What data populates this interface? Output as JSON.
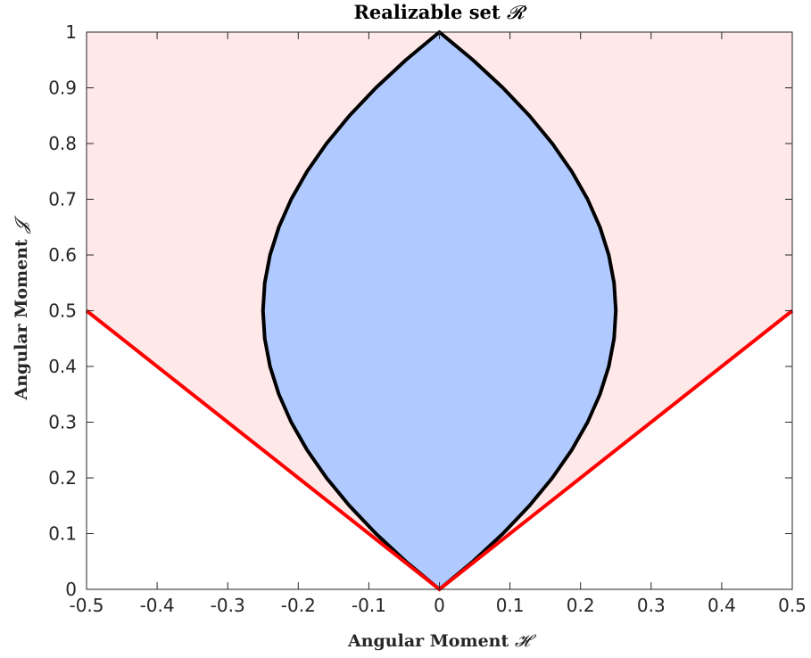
{
  "chart_data": {
    "type": "area",
    "title": "Realizable set",
    "title_symbol": "𝓡",
    "xlabel": "Angular Moment",
    "xlabel_symbol": "𝓗",
    "ylabel": "Angular Moment",
    "ylabel_symbol": "𝓙",
    "xlim": [
      -0.5,
      0.5
    ],
    "ylim": [
      0,
      1
    ],
    "x_ticks": [
      -0.5,
      -0.4,
      -0.3,
      -0.2,
      -0.1,
      0,
      0.1,
      0.2,
      0.3,
      0.4,
      0.5
    ],
    "x_tick_labels": [
      "-0.5",
      "-0.4",
      "-0.3",
      "-0.2",
      "-0.1",
      "0",
      "0.1",
      "0.2",
      "0.3",
      "0.4",
      "0.5"
    ],
    "y_ticks": [
      0,
      0.1,
      0.2,
      0.3,
      0.4,
      0.5,
      0.6,
      0.7,
      0.8,
      0.9,
      1
    ],
    "y_tick_labels": [
      "0",
      "0.1",
      "0.2",
      "0.3",
      "0.4",
      "0.5",
      "0.6",
      "0.7",
      "0.8",
      "0.9",
      "1"
    ],
    "grid": false,
    "series": [
      {
        "kind": "region-outer",
        "fill": "#ffe8e8",
        "x": [
          -0.5,
          0,
          0.5,
          0.5,
          -0.5
        ],
        "y": [
          0.5,
          0,
          0.5,
          1,
          1
        ]
      },
      {
        "kind": "boundary-line",
        "color": "#ff0000",
        "x": [
          -0.5,
          0,
          0.5
        ],
        "y": [
          0.5,
          0,
          0.5
        ]
      },
      {
        "kind": "region-inner",
        "fill": "#b0caff",
        "edge_color": "#000000",
        "x": [
          0,
          0.0475,
          0.09,
          0.1275,
          0.16,
          0.1875,
          0.21,
          0.2275,
          0.24,
          0.2475,
          0.25,
          0.2475,
          0.24,
          0.2275,
          0.21,
          0.1875,
          0.16,
          0.1275,
          0.09,
          0.0475,
          0,
          -0.0475,
          -0.09,
          -0.1275,
          -0.16,
          -0.1875,
          -0.21,
          -0.2275,
          -0.24,
          -0.2475,
          -0.25,
          -0.2475,
          -0.24,
          -0.2275,
          -0.21,
          -0.1875,
          -0.16,
          -0.1275,
          -0.09,
          -0.0475,
          0
        ],
        "y": [
          0,
          0.05,
          0.1,
          0.15,
          0.2,
          0.25,
          0.3,
          0.35,
          0.4,
          0.45,
          0.5,
          0.55,
          0.6,
          0.65,
          0.7,
          0.75,
          0.8,
          0.85,
          0.9,
          0.95,
          1,
          0.95,
          0.9,
          0.85,
          0.8,
          0.75,
          0.7,
          0.65,
          0.6,
          0.55,
          0.5,
          0.45,
          0.4,
          0.35,
          0.3,
          0.25,
          0.2,
          0.15,
          0.1,
          0.05,
          0
        ]
      }
    ]
  }
}
